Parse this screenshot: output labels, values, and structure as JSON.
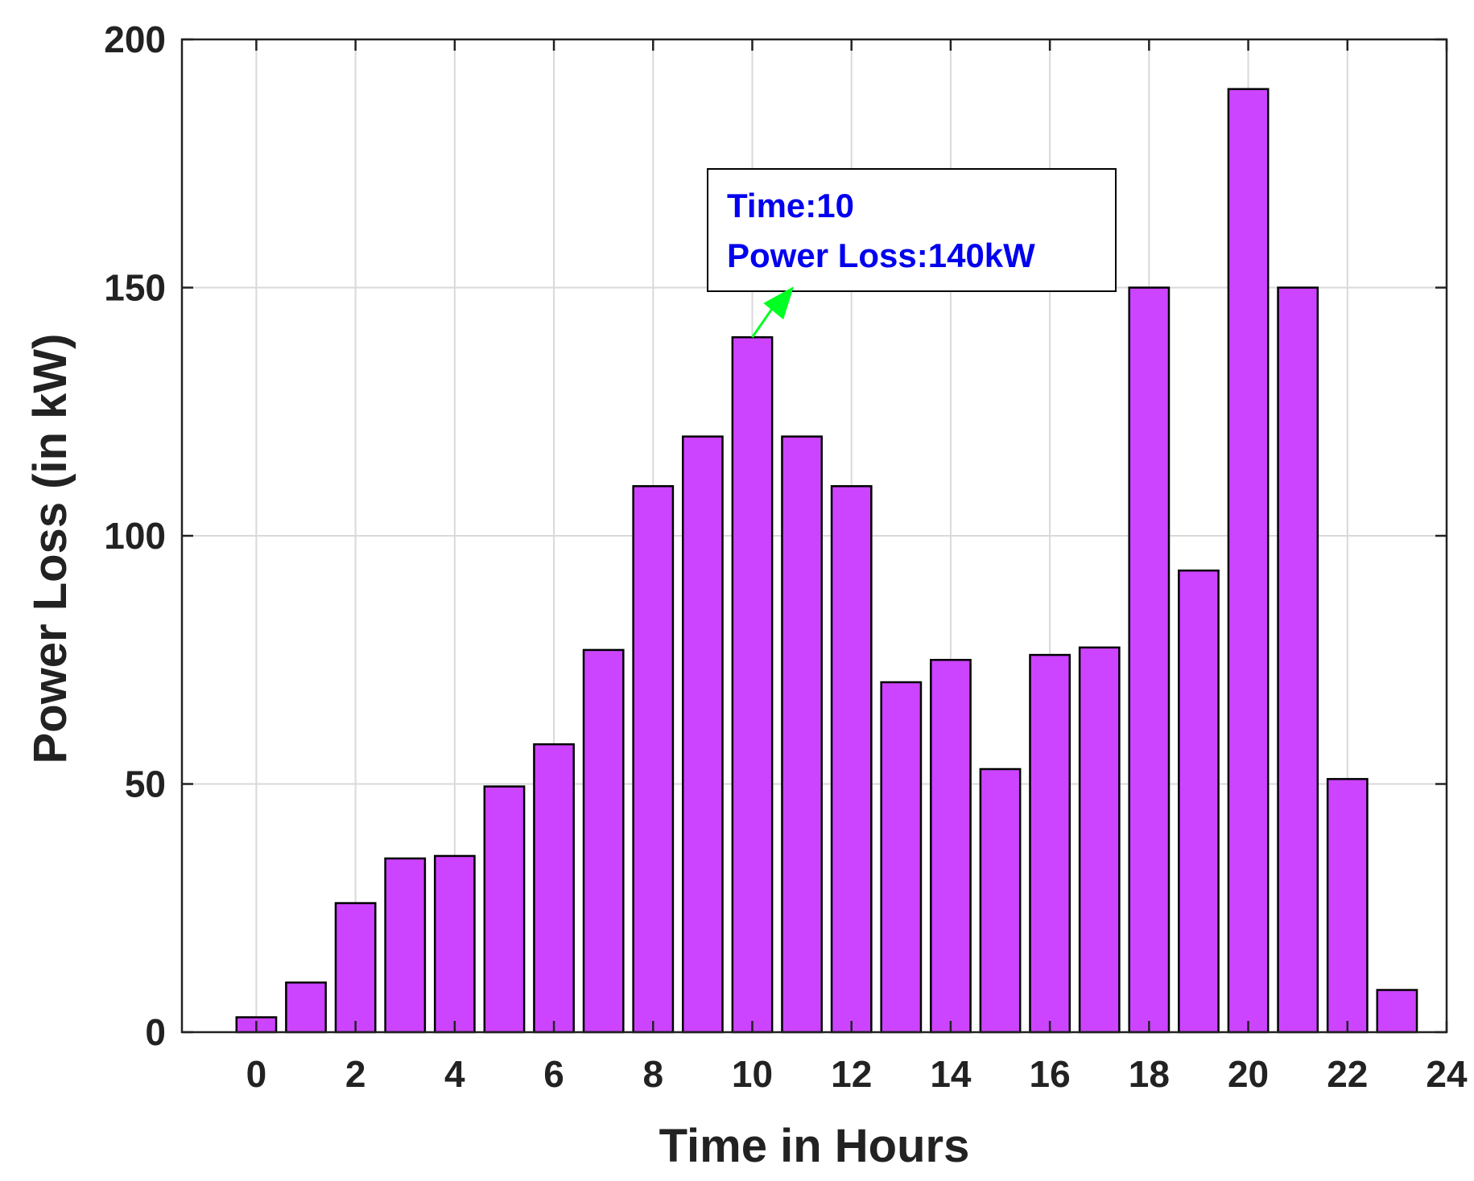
{
  "chart_data": {
    "type": "bar",
    "x": [
      0,
      1,
      2,
      3,
      4,
      5,
      6,
      7,
      8,
      9,
      10,
      11,
      12,
      13,
      14,
      15,
      16,
      17,
      18,
      19,
      20,
      21,
      22,
      23
    ],
    "values": [
      3,
      10,
      26,
      35,
      35.5,
      49.5,
      58,
      77,
      110,
      120,
      140,
      120,
      110,
      70.5,
      75,
      53,
      76,
      77.5,
      150,
      93,
      190,
      150,
      51,
      8.5
    ],
    "xlabel": "Time in Hours",
    "ylabel": "Power Loss (in kW)",
    "xlim": [
      -1.5,
      24
    ],
    "ylim": [
      0,
      200
    ],
    "xticks": [
      0,
      2,
      4,
      6,
      8,
      10,
      12,
      14,
      16,
      18,
      20,
      22,
      24
    ],
    "yticks": [
      0,
      50,
      100,
      150,
      200
    ],
    "grid": true,
    "bar_color": "#cc44ff",
    "annotation": {
      "lines": [
        "Time:10",
        "Power Loss:140kW"
      ],
      "target": {
        "x": 10,
        "y": 140
      },
      "text_color": "#0000ee",
      "arrow_color": "#00ff22"
    }
  }
}
